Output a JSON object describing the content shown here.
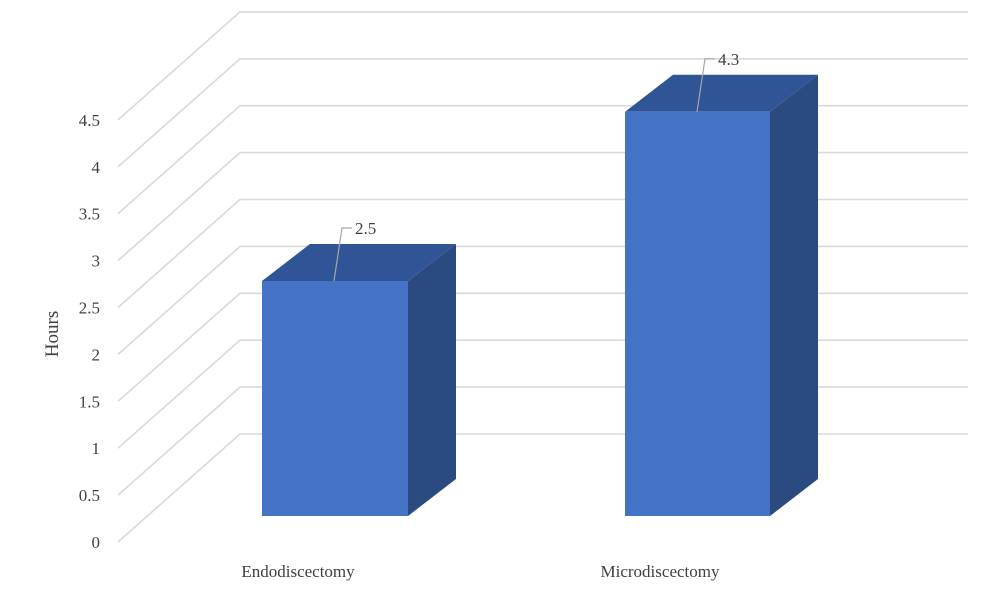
{
  "chart_data": {
    "type": "bar",
    "style": "3d-column",
    "title": "",
    "xlabel": "",
    "ylabel": "Hours",
    "categories": [
      "Endodiscectomy",
      "Microdiscectomy"
    ],
    "values": [
      2.5,
      4.3
    ],
    "data_labels": [
      "2.5",
      "4.3"
    ],
    "ylim": [
      0,
      5
    ],
    "yticks": [
      "0",
      "0.5",
      "1",
      "1.5",
      "2",
      "2.5",
      "3",
      "3.5",
      "4",
      "4.5"
    ],
    "grid": true,
    "legend": "none",
    "colors": {
      "bar_front": "#4472C4",
      "bar_top": "#2F5597",
      "bar_side": "#2B4A80",
      "grid": "#D9D9D9",
      "text": "#404040"
    }
  }
}
